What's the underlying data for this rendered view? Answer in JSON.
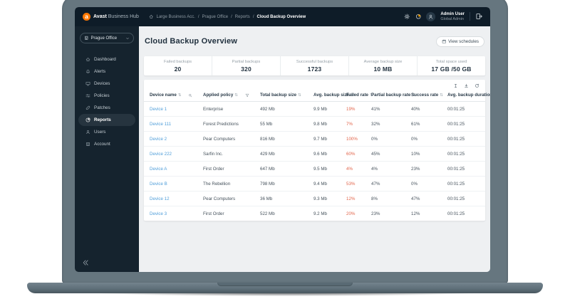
{
  "colors": {
    "brand_orange": "#ff7800",
    "topbar_bg": "#0e1c28",
    "sidebar_bg": "#15232e",
    "content_bg": "#eef0f2",
    "link_blue": "#4f9ed9",
    "failed_red": "#e2654b",
    "laptop_gray": "#66767f"
  },
  "topbar": {
    "brand": {
      "logo_letter": "a",
      "name_bold": "Avast",
      "name_rest": " Business Hub"
    },
    "breadcrumb": {
      "items": [
        {
          "label": "Large Business Acc."
        },
        {
          "label": "Prague Office"
        },
        {
          "label": "Reports"
        }
      ],
      "separator": "/",
      "current": "Cloud Backup Overview"
    },
    "user": {
      "name": "Admin User",
      "role": "Global Admin"
    }
  },
  "sidebar": {
    "office_selector": {
      "label": "Prague Office"
    },
    "items": [
      {
        "label": "Dashboard",
        "icon": "home",
        "active": false
      },
      {
        "label": "Alerts",
        "icon": "bell",
        "active": false
      },
      {
        "label": "Devices",
        "icon": "monitor",
        "active": false
      },
      {
        "label": "Policies",
        "icon": "sliders",
        "active": false
      },
      {
        "label": "Patches",
        "icon": "patch",
        "active": false
      },
      {
        "label": "Reports",
        "icon": "pie",
        "active": true
      },
      {
        "label": "Users",
        "icon": "user",
        "active": false
      },
      {
        "label": "Account",
        "icon": "building",
        "active": false
      }
    ]
  },
  "page": {
    "title": "Cloud Backup Overview",
    "view_schedules_label": "View schedules"
  },
  "stats": [
    {
      "label": "Failed backups",
      "value": "20"
    },
    {
      "label": "Partial backups",
      "value": "320"
    },
    {
      "label": "Successful backups",
      "value": "1723"
    },
    {
      "label": "Average backup size",
      "value": "10 MB"
    },
    {
      "label": "Total space used",
      "value": "17 GB /50 GB"
    }
  ],
  "table": {
    "columns": [
      {
        "label": "Device name",
        "extra_icon": "search"
      },
      {
        "label": "Applied policy",
        "extra_icon": "filter"
      },
      {
        "label": "Total backup size",
        "extra_icon": ""
      },
      {
        "label": "Avg. backup size",
        "extra_icon": ""
      },
      {
        "label": "Failed rate",
        "extra_icon": ""
      },
      {
        "label": "Partial backup rate",
        "extra_icon": ""
      },
      {
        "label": "Success rate",
        "extra_icon": ""
      },
      {
        "label": "Avg. backup duration",
        "extra_icon": ""
      }
    ],
    "rows": [
      {
        "device": "Device 1",
        "policy": "Enterprise",
        "total": "492 Mb",
        "avg": "9.9 Mb",
        "failed": "19%",
        "partial": "41%",
        "success": "40%",
        "duration": "00:01:25"
      },
      {
        "device": "Device 111",
        "policy": "Forest Predictions",
        "total": "55 Mb",
        "avg": "9.8 Mb",
        "failed": "7%",
        "partial": "32%",
        "success": "61%",
        "duration": "00:01:25"
      },
      {
        "device": "Device 2",
        "policy": "Pear Computers",
        "total": "816 Mb",
        "avg": "9.7 Mb",
        "failed": "100%",
        "partial": "0%",
        "success": "0%",
        "duration": "00:01:25"
      },
      {
        "device": "Device 222",
        "policy": "Sarfin Inc.",
        "total": "429 Mb",
        "avg": "9.6 Mb",
        "failed": "60%",
        "partial": "45%",
        "success": "10%",
        "duration": "00:01:25"
      },
      {
        "device": "Device A",
        "policy": "First Order",
        "total": "647 Mb",
        "avg": "9.5 Mb",
        "failed": "4%",
        "partial": "4%",
        "success": "23%",
        "duration": "00:01:25"
      },
      {
        "device": "Device B",
        "policy": "The Rebellion",
        "total": "798 Mb",
        "avg": "9.4 Mb",
        "failed": "53%",
        "partial": "47%",
        "success": "0%",
        "duration": "00:01:25"
      },
      {
        "device": "Device 12",
        "policy": "Pear Computers",
        "total": "36 Mb",
        "avg": "9.3 Mb",
        "failed": "12%",
        "partial": "8%",
        "success": "47%",
        "duration": "00:01:25"
      },
      {
        "device": "Device 3",
        "policy": "First Order",
        "total": "522 Mb",
        "avg": "9.2 Mb",
        "failed": "20%",
        "partial": "23%",
        "success": "12%",
        "duration": "00:01:25"
      }
    ]
  }
}
